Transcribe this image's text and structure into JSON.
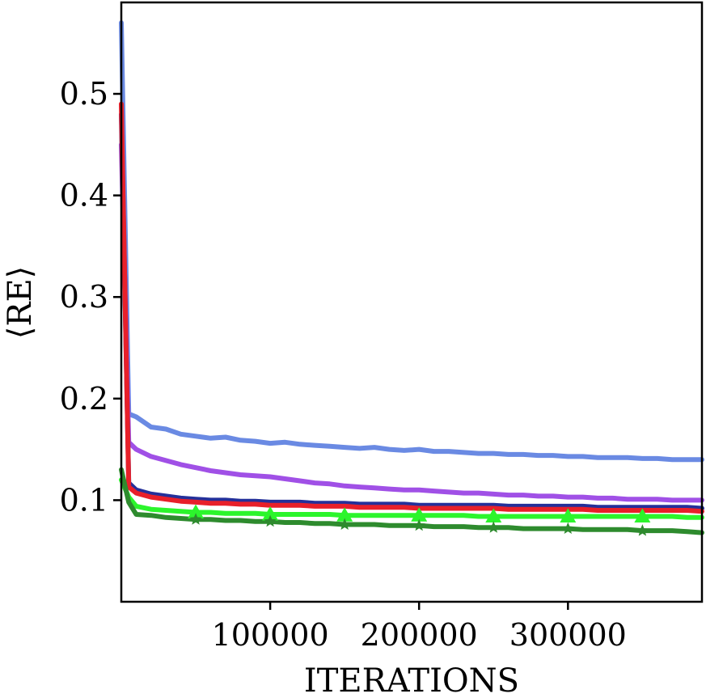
{
  "chart_data": {
    "type": "line",
    "title": "",
    "xlabel": "ITERATIONS",
    "ylabel": "⟨RE⟩",
    "xlim": [
      0,
      390000
    ],
    "ylim": [
      0.0,
      0.59
    ],
    "x_ticks": [
      100000,
      200000,
      300000
    ],
    "x_tick_labels": [
      "100000",
      "200000",
      "300000"
    ],
    "y_ticks": [
      0.1,
      0.2,
      0.3,
      0.4,
      0.5
    ],
    "y_tick_labels": [
      "0.1",
      "0.2",
      "0.3",
      "0.4",
      "0.5"
    ],
    "grid": false,
    "legend": "none",
    "x": [
      0,
      5000,
      10000,
      20000,
      30000,
      40000,
      50000,
      60000,
      70000,
      80000,
      90000,
      100000,
      110000,
      120000,
      130000,
      140000,
      150000,
      160000,
      170000,
      180000,
      190000,
      200000,
      210000,
      220000,
      230000,
      240000,
      250000,
      260000,
      270000,
      280000,
      290000,
      300000,
      310000,
      320000,
      330000,
      340000,
      350000,
      360000,
      370000,
      380000,
      390000
    ],
    "series": [
      {
        "color": "#6a8ae3",
        "marker": "none",
        "values": [
          0.57,
          0.185,
          0.182,
          0.172,
          0.17,
          0.165,
          0.163,
          0.161,
          0.162,
          0.159,
          0.158,
          0.156,
          0.157,
          0.155,
          0.154,
          0.153,
          0.152,
          0.151,
          0.152,
          0.15,
          0.149,
          0.15,
          0.148,
          0.148,
          0.147,
          0.146,
          0.146,
          0.145,
          0.145,
          0.144,
          0.144,
          0.143,
          0.143,
          0.142,
          0.142,
          0.142,
          0.141,
          0.141,
          0.14,
          0.14,
          0.14
        ]
      },
      {
        "color": "#a050e6",
        "marker": "none",
        "values": [
          0.45,
          0.157,
          0.15,
          0.143,
          0.139,
          0.135,
          0.132,
          0.129,
          0.127,
          0.125,
          0.124,
          0.123,
          0.121,
          0.119,
          0.117,
          0.116,
          0.114,
          0.113,
          0.112,
          0.111,
          0.11,
          0.11,
          0.109,
          0.108,
          0.107,
          0.107,
          0.106,
          0.105,
          0.105,
          0.104,
          0.104,
          0.103,
          0.103,
          0.102,
          0.102,
          0.101,
          0.101,
          0.101,
          0.1,
          0.1,
          0.1
        ]
      },
      {
        "color": "#24309a",
        "marker": "none",
        "values": [
          0.48,
          0.117,
          0.11,
          0.106,
          0.104,
          0.102,
          0.101,
          0.1,
          0.1,
          0.099,
          0.099,
          0.098,
          0.098,
          0.098,
          0.097,
          0.097,
          0.097,
          0.096,
          0.096,
          0.096,
          0.096,
          0.095,
          0.095,
          0.095,
          0.095,
          0.095,
          0.095,
          0.094,
          0.094,
          0.094,
          0.094,
          0.094,
          0.094,
          0.093,
          0.093,
          0.093,
          0.093,
          0.093,
          0.093,
          0.093,
          0.092
        ]
      },
      {
        "color": "#e8202a",
        "marker": "none",
        "values": [
          0.49,
          0.113,
          0.107,
          0.103,
          0.101,
          0.099,
          0.098,
          0.097,
          0.097,
          0.096,
          0.096,
          0.095,
          0.095,
          0.095,
          0.094,
          0.094,
          0.094,
          0.093,
          0.093,
          0.093,
          0.093,
          0.092,
          0.092,
          0.092,
          0.092,
          0.092,
          0.092,
          0.091,
          0.091,
          0.091,
          0.091,
          0.091,
          0.091,
          0.09,
          0.09,
          0.09,
          0.09,
          0.09,
          0.09,
          0.09,
          0.089
        ]
      },
      {
        "color": "#2cf52c",
        "marker": "triangle",
        "marker_x": [
          50000,
          100000,
          150000,
          200000,
          250000,
          300000,
          350000
        ],
        "values": [
          0.12,
          0.103,
          0.094,
          0.091,
          0.09,
          0.089,
          0.088,
          0.088,
          0.087,
          0.087,
          0.087,
          0.086,
          0.086,
          0.086,
          0.086,
          0.086,
          0.085,
          0.085,
          0.085,
          0.085,
          0.085,
          0.085,
          0.085,
          0.085,
          0.085,
          0.084,
          0.084,
          0.084,
          0.084,
          0.084,
          0.084,
          0.084,
          0.084,
          0.084,
          0.084,
          0.084,
          0.084,
          0.084,
          0.084,
          0.083,
          0.083
        ]
      },
      {
        "color": "#2e8b2e",
        "marker": "star",
        "marker_x": [
          50000,
          100000,
          150000,
          200000,
          250000,
          300000,
          350000
        ],
        "values": [
          0.13,
          0.098,
          0.086,
          0.085,
          0.083,
          0.082,
          0.081,
          0.081,
          0.08,
          0.08,
          0.079,
          0.079,
          0.078,
          0.078,
          0.077,
          0.077,
          0.076,
          0.076,
          0.076,
          0.075,
          0.075,
          0.075,
          0.074,
          0.074,
          0.074,
          0.073,
          0.073,
          0.073,
          0.072,
          0.072,
          0.072,
          0.072,
          0.071,
          0.071,
          0.071,
          0.071,
          0.07,
          0.07,
          0.07,
          0.069,
          0.068
        ]
      }
    ]
  }
}
